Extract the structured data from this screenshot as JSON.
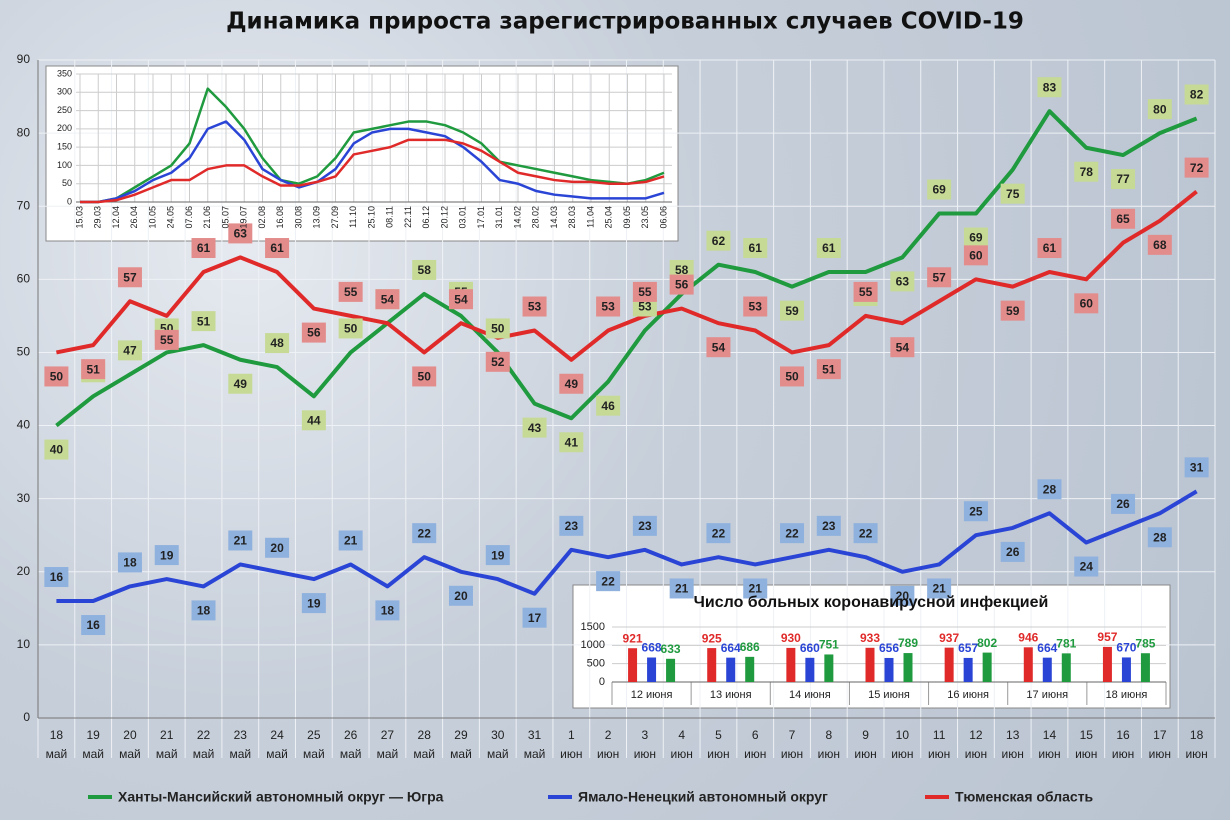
{
  "chart_data": [
    {
      "type": "line",
      "title": "Динамика прироста зарегистрированных случаев COVID-19",
      "categories": [
        [
          "18",
          "май"
        ],
        [
          "19",
          "май"
        ],
        [
          "20",
          "май"
        ],
        [
          "21",
          "май"
        ],
        [
          "22",
          "май"
        ],
        [
          "23",
          "май"
        ],
        [
          "24",
          "май"
        ],
        [
          "25",
          "май"
        ],
        [
          "26",
          "май"
        ],
        [
          "27",
          "май"
        ],
        [
          "28",
          "май"
        ],
        [
          "29",
          "май"
        ],
        [
          "30",
          "май"
        ],
        [
          "31",
          "май"
        ],
        [
          "1",
          "июн"
        ],
        [
          "2",
          "июн"
        ],
        [
          "3",
          "июн"
        ],
        [
          "4",
          "июн"
        ],
        [
          "5",
          "июн"
        ],
        [
          "6",
          "июн"
        ],
        [
          "7",
          "июн"
        ],
        [
          "8",
          "июн"
        ],
        [
          "9",
          "июн"
        ],
        [
          "10",
          "июн"
        ],
        [
          "11",
          "июн"
        ],
        [
          "12",
          "июн"
        ],
        [
          "13",
          "июн"
        ],
        [
          "14",
          "июн"
        ],
        [
          "15",
          "июн"
        ],
        [
          "16",
          "июн"
        ],
        [
          "17",
          "июн"
        ],
        [
          "18",
          "июн"
        ]
      ],
      "series": [
        {
          "name": "Ханты-Мансийский автономный округ — Югра",
          "color": "#1f9a3e",
          "label_color": "#c6da96",
          "values": [
            40,
            44,
            47,
            50,
            51,
            49,
            48,
            44,
            50,
            54,
            58,
            55,
            50,
            43,
            41,
            46,
            53,
            58,
            62,
            61,
            59,
            61,
            61,
            63,
            69,
            69,
            75,
            83,
            78,
            77,
            80,
            82
          ]
        },
        {
          "name": "Ямало-Ненецкий автономный округ",
          "color": "#2a45d6",
          "label_color": "#8fb1de",
          "values": [
            16,
            16,
            18,
            19,
            18,
            21,
            20,
            19,
            21,
            18,
            22,
            20,
            19,
            17,
            23,
            22,
            23,
            21,
            22,
            21,
            22,
            23,
            22,
            20,
            21,
            25,
            26,
            28,
            24,
            26,
            28,
            31
          ]
        },
        {
          "name": "Тюменская область",
          "color": "#e02a2a",
          "label_color": "#e38c8c",
          "values": [
            50,
            51,
            57,
            55,
            61,
            63,
            61,
            56,
            55,
            54,
            50,
            54,
            52,
            53,
            49,
            53,
            55,
            56,
            54,
            53,
            50,
            51,
            55,
            54,
            57,
            60,
            59,
            61,
            60,
            65,
            68,
            72
          ]
        }
      ],
      "ylim": [
        0,
        90
      ],
      "yticks": [
        0,
        10,
        20,
        30,
        40,
        50,
        60,
        70,
        80,
        90
      ],
      "grid": true
    },
    {
      "type": "line",
      "categories": [
        "15.03",
        "29.03",
        "12.04",
        "26.04",
        "10.05",
        "24.05",
        "07.06",
        "21.06",
        "05.07",
        "19.07",
        "02.08",
        "16.08",
        "30.08",
        "13.09",
        "27.09",
        "11.10",
        "25.10",
        "08.11",
        "22.11",
        "06.12",
        "20.12",
        "03.01",
        "17.01",
        "31.01",
        "14.02",
        "28.02",
        "14.03",
        "28.03",
        "11.04",
        "25.04",
        "09.05",
        "23.05",
        "06.06"
      ],
      "series": [
        {
          "color": "#1f9a3e",
          "values": [
            0,
            0,
            10,
            40,
            70,
            100,
            160,
            310,
            260,
            200,
            120,
            60,
            50,
            70,
            120,
            190,
            200,
            210,
            220,
            220,
            210,
            190,
            160,
            110,
            100,
            90,
            80,
            70,
            60,
            55,
            50,
            60,
            80
          ]
        },
        {
          "color": "#2a45d6",
          "values": [
            0,
            0,
            10,
            30,
            60,
            80,
            120,
            200,
            220,
            170,
            90,
            60,
            40,
            55,
            90,
            160,
            190,
            200,
            200,
            190,
            180,
            150,
            110,
            60,
            50,
            30,
            20,
            15,
            10,
            10,
            10,
            10,
            25
          ]
        },
        {
          "color": "#e02a2a",
          "values": [
            0,
            0,
            5,
            20,
            40,
            60,
            60,
            90,
            100,
            100,
            70,
            45,
            45,
            55,
            70,
            130,
            140,
            150,
            170,
            170,
            170,
            160,
            140,
            110,
            80,
            70,
            60,
            55,
            55,
            50,
            50,
            55,
            70
          ]
        }
      ],
      "ylim": [
        0,
        350
      ],
      "yticks": [
        0,
        50,
        100,
        150,
        200,
        250,
        300,
        350
      ],
      "grid": true
    },
    {
      "type": "bar",
      "title": "Число больных коронавирусной  инфекцией",
      "categories": [
        "12 июня",
        "13 июня",
        "14 июня",
        "15 июня",
        "16 июня",
        "17 июня",
        "18 июня"
      ],
      "series": [
        {
          "color": "#e02a2a",
          "values": [
            921,
            925,
            930,
            933,
            937,
            946,
            957
          ]
        },
        {
          "color": "#2a45d6",
          "values": [
            668,
            664,
            660,
            656,
            657,
            664,
            670
          ]
        },
        {
          "color": "#1f9a3e",
          "values": [
            633,
            686,
            751,
            789,
            802,
            781,
            785
          ]
        }
      ],
      "ylim": [
        0,
        1500
      ],
      "yticks": [
        0,
        500,
        1000,
        1500
      ],
      "grid": true
    }
  ]
}
